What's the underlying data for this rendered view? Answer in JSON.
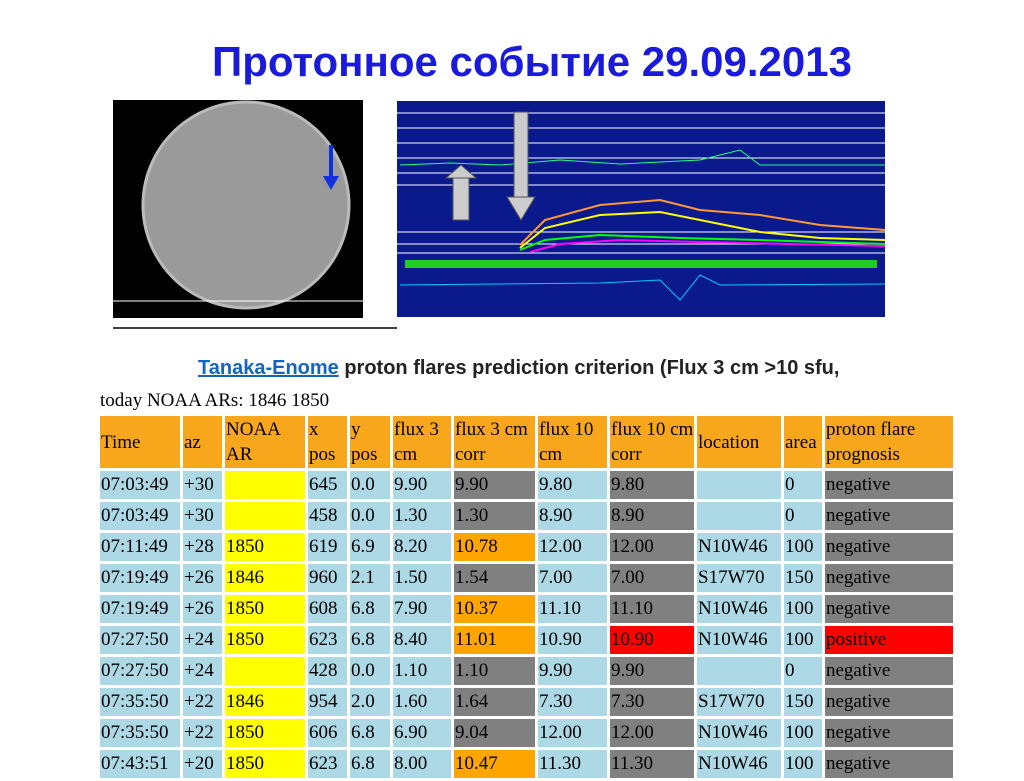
{
  "title": "Протонное событие 29.09.2013",
  "subtitle": {
    "link": "Tanaka-Enome",
    "text": " proton flares prediction criterion (Flux 3 cm >10 sfu,",
    "line2": "today NOAA ARs: 1846 1850"
  },
  "table": {
    "header": [
      "Time",
      "az",
      "NOAA AR",
      "x pos",
      "y pos",
      "flux 3 cm",
      "flux 3 cm corr",
      "flux 10 cm",
      "flux 10 cm corr",
      "location",
      "area",
      "proton flare prognosis"
    ],
    "palette": {
      "h": "#f8a61c",
      "b": "#add8e6",
      "y": "#ffff00",
      "g": "#808080",
      "o": "#ffa500",
      "r": "#ff0000"
    },
    "row_colors": [
      "bbybbbgbgbbg",
      "bbybbbgbgbbg",
      "bbybbbobgbbg",
      "bbybbbgbgbbg",
      "bbybbbobgbbg",
      "bbybbbobrbbr",
      "bbybbbgbgbbg",
      "bbybbbgbgbbg",
      "bbybbbgbgbbg",
      "bbybbbobgbbg"
    ],
    "rows": [
      [
        "07:03:49",
        "+30",
        "",
        "645",
        "0.0",
        "9.90",
        "9.90",
        "9.80",
        "9.80",
        "",
        "0",
        "negative"
      ],
      [
        "07:03:49",
        "+30",
        "",
        "458",
        "0.0",
        "1.30",
        "1.30",
        "8.90",
        "8.90",
        "",
        "0",
        "negative"
      ],
      [
        "07:11:49",
        "+28",
        "1850",
        "619",
        "6.9",
        "8.20",
        "10.78",
        "12.00",
        "12.00",
        "N10W46",
        "100",
        "negative"
      ],
      [
        "07:19:49",
        "+26",
        "1846",
        "960",
        "2.1",
        "1.50",
        "1.54",
        "7.00",
        "7.00",
        "S17W70",
        "150",
        "negative"
      ],
      [
        "07:19:49",
        "+26",
        "1850",
        "608",
        "6.8",
        "7.90",
        "10.37",
        "11.10",
        "11.10",
        "N10W46",
        "100",
        "negative"
      ],
      [
        "07:27:50",
        "+24",
        "1850",
        "623",
        "6.8",
        "8.40",
        "11.01",
        "10.90",
        "10.90",
        "N10W46",
        "100",
        "positive"
      ],
      [
        "07:27:50",
        "+24",
        "",
        "428",
        "0.0",
        "1.10",
        "1.10",
        "9.90",
        "9.90",
        "",
        "0",
        "negative"
      ],
      [
        "07:35:50",
        "+22",
        "1846",
        "954",
        "2.0",
        "1.60",
        "1.64",
        "7.30",
        "7.30",
        "S17W70",
        "150",
        "negative"
      ],
      [
        "07:35:50",
        "+22",
        "1850",
        "606",
        "6.8",
        "6.90",
        "9.04",
        "12.00",
        "12.00",
        "N10W46",
        "100",
        "negative"
      ],
      [
        "07:43:51",
        "+20",
        "1850",
        "623",
        "6.8",
        "8.00",
        "10.47",
        "11.30",
        "11.30",
        "N10W46",
        "100",
        "negative"
      ]
    ]
  }
}
